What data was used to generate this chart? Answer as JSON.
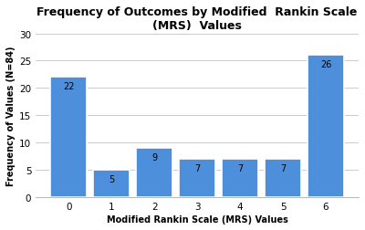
{
  "categories": [
    0,
    1,
    2,
    3,
    4,
    5,
    6
  ],
  "values": [
    22,
    5,
    9,
    7,
    7,
    7,
    26
  ],
  "bar_color": "#4d8fdb",
  "title": "Frequency of Outcomes by Modified  Rankin Scale\n(MRS)  Values",
  "xlabel": "Modified Rankin Scale (MRS) Values",
  "ylabel": "Frequency of Values (N=84)",
  "ylim": [
    0,
    30
  ],
  "yticks": [
    0,
    5,
    10,
    15,
    20,
    25,
    30
  ],
  "background_color": "#ffffff",
  "plot_bg_color": "#ffffff",
  "grid_color": "#cccccc",
  "title_fontsize": 9,
  "axis_label_fontsize": 7,
  "tick_fontsize": 7.5,
  "annotation_fontsize": 7
}
